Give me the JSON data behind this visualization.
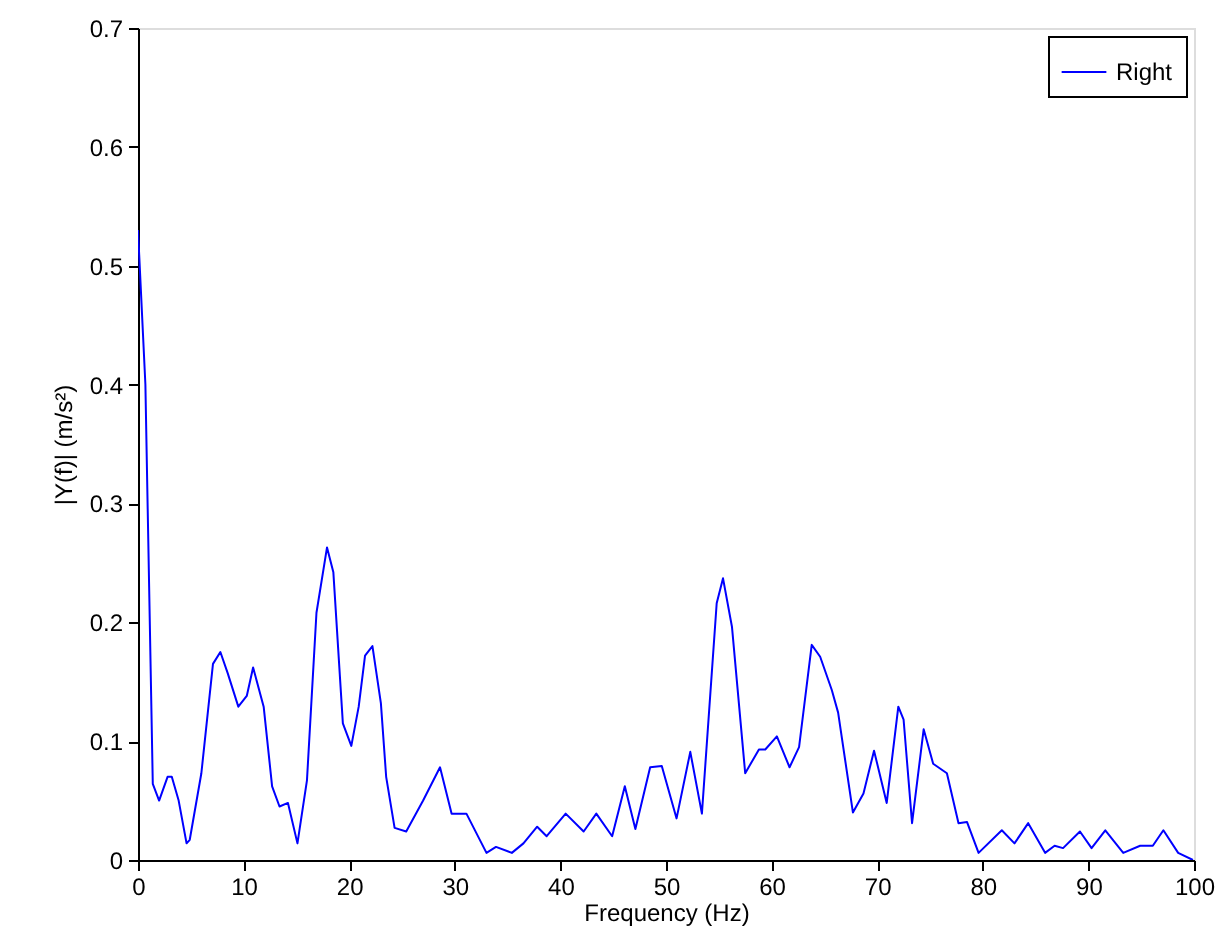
{
  "chart_data": {
    "type": "line",
    "xlabel": "Frequency (Hz)",
    "ylabel": "|Y(f)| (m/s²)",
    "xlim": [
      0,
      100
    ],
    "xticks": [
      0,
      10,
      20,
      30,
      40,
      50,
      60,
      70,
      80,
      90,
      100
    ],
    "ylim": [
      0,
      0.7
    ],
    "yticks": [
      0,
      0.1,
      0.2,
      0.3,
      0.4,
      0.5,
      0.6,
      0.7
    ],
    "grid": false,
    "legend": "top right",
    "marker": "none",
    "line_style": "solid",
    "series": [
      {
        "name": "Right",
        "color": "#0000ff",
        "x": [
          0,
          0.7,
          1.4,
          2.0,
          2.8,
          3.2,
          3.85,
          4.6,
          4.9,
          6.0,
          7.1,
          7.8,
          8.5,
          9.5,
          10.3,
          10.9,
          11.9,
          12.7,
          13.4,
          14.2,
          15.1,
          16.0,
          16.9,
          17.9,
          18.5,
          19.4,
          20.2,
          20.9,
          21.5,
          22.2,
          23.0,
          23.5,
          24.3,
          25.4,
          27.0,
          28.6,
          29.7,
          31.1,
          33.0,
          33.9,
          35.4,
          36.5,
          37.8,
          38.7,
          40.5,
          42.2,
          43.4,
          44.9,
          46.1,
          47.1,
          48.5,
          49.6,
          51.0,
          52.3,
          53.4,
          54.8,
          55.4,
          56.25,
          57.5,
          58.8,
          59.4,
          60.5,
          61.7,
          62.6,
          63.8,
          64.6,
          65.7,
          66.3,
          67.7,
          68.7,
          69.7,
          70.9,
          72.0,
          72.5,
          73.3,
          74.4,
          75.3,
          76.6,
          77.7,
          78.5,
          79.6,
          81.8,
          83.0,
          84.3,
          85.9,
          86.8,
          87.6,
          89.2,
          90.3,
          91.6,
          93.3,
          94.9,
          96.1,
          97.1,
          98.5,
          99.9
        ],
        "values": [
          0.53,
          0.4,
          0.064,
          0.05,
          0.07,
          0.07,
          0.05,
          0.014,
          0.017,
          0.073,
          0.165,
          0.175,
          0.157,
          0.129,
          0.138,
          0.162,
          0.129,
          0.062,
          0.045,
          0.048,
          0.014,
          0.067,
          0.208,
          0.263,
          0.242,
          0.115,
          0.096,
          0.129,
          0.172,
          0.18,
          0.132,
          0.07,
          0.027,
          0.024,
          0.05,
          0.078,
          0.039,
          0.039,
          0.006,
          0.011,
          0.006,
          0.014,
          0.028,
          0.02,
          0.039,
          0.024,
          0.039,
          0.02,
          0.062,
          0.026,
          0.078,
          0.079,
          0.035,
          0.091,
          0.039,
          0.216,
          0.237,
          0.196,
          0.073,
          0.093,
          0.093,
          0.104,
          0.078,
          0.095,
          0.181,
          0.171,
          0.143,
          0.124,
          0.04,
          0.056,
          0.092,
          0.048,
          0.129,
          0.118,
          0.031,
          0.11,
          0.081,
          0.073,
          0.031,
          0.032,
          0.006,
          0.025,
          0.014,
          0.031,
          0.006,
          0.012,
          0.01,
          0.024,
          0.01,
          0.025,
          0.006,
          0.012,
          0.012,
          0.025,
          0.006,
          0.0
        ]
      }
    ]
  }
}
